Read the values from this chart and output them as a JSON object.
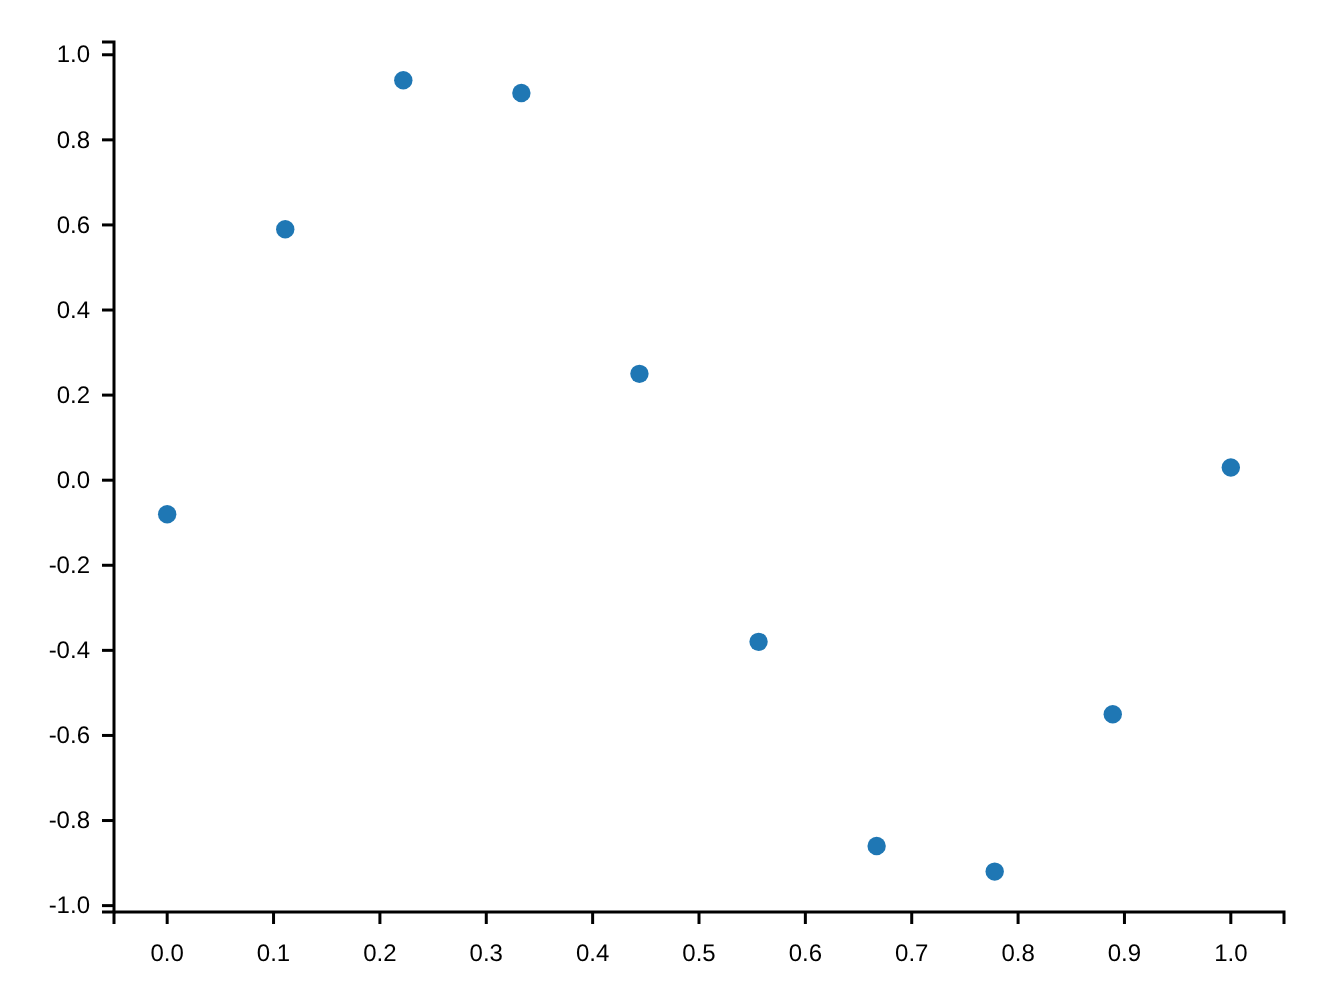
{
  "chart_data": {
    "type": "scatter",
    "x": [
      0,
      0.111,
      0.222,
      0.333,
      0.444,
      0.556,
      0.667,
      0.778,
      0.889,
      1.0
    ],
    "series": [
      {
        "color": "#1f77b4",
        "values": [
          -0.08,
          0.59,
          0.94,
          0.91,
          0.25,
          -0.38,
          -0.86,
          -0.92,
          -0.55,
          0.03
        ]
      }
    ],
    "xlim": [
      -0.05,
      1.05
    ],
    "ylim": [
      -1.015,
      1.03
    ],
    "xticks": [
      {
        "value": 0,
        "label": "0.0"
      },
      {
        "value": 0.1,
        "label": "0.1"
      },
      {
        "value": 0.2,
        "label": "0.2"
      },
      {
        "value": 0.3,
        "label": "0.3"
      },
      {
        "value": 0.4,
        "label": "0.4"
      },
      {
        "value": 0.5,
        "label": "0.5"
      },
      {
        "value": 0.6,
        "label": "0.6"
      },
      {
        "value": 0.7,
        "label": "0.7"
      },
      {
        "value": 0.8,
        "label": "0.8"
      },
      {
        "value": 0.9,
        "label": "0.9"
      },
      {
        "value": 1,
        "label": "1.0"
      }
    ],
    "yticks": [
      {
        "value": -1,
        "label": "-1.0"
      },
      {
        "value": -0.8,
        "label": "-0.8"
      },
      {
        "value": -0.6,
        "label": "-0.6"
      },
      {
        "value": -0.4,
        "label": "-0.4"
      },
      {
        "value": -0.2,
        "label": "-0.2"
      },
      {
        "value": 0,
        "label": "0.0"
      },
      {
        "value": 0.2,
        "label": "0.2"
      },
      {
        "value": 0.4,
        "label": "0.4"
      },
      {
        "value": 0.6,
        "label": "0.6"
      },
      {
        "value": 0.8,
        "label": "0.8"
      },
      {
        "value": 1,
        "label": "1.0"
      }
    ],
    "marker": "circle",
    "grid": false
  }
}
